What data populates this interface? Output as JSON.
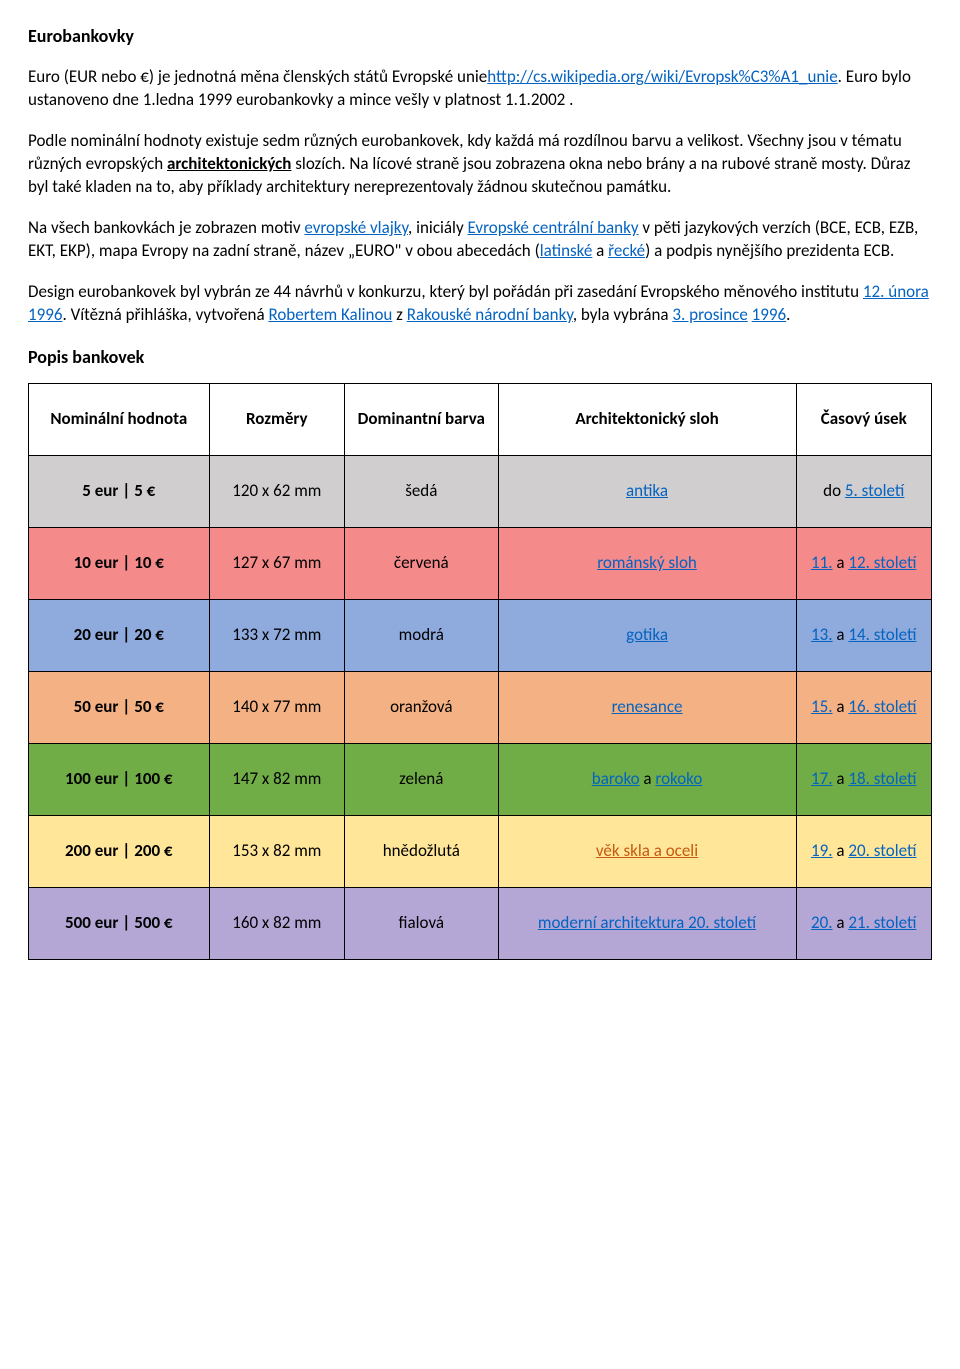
{
  "title": "Eurobankovky",
  "p1a": "Euro (EUR nebo €) je jednotná měna členských států Evropské unie",
  "p1link": "http://cs.wikipedia.org/wiki/Evropsk%C3%A1_unie",
  "p1b": ". Euro bylo ustanoveno dne  1.ledna 1999 eurobankovky a mince vešly v platnost 1.1.2002 .",
  "p2a": "Podle nominální hodnoty existuje sedm  různých eurobankovek, kdy každá má rozdílnou barvu a velikost. Všechny jsou v tématu různých evropských ",
  "p2arch": "architektonických",
  "p2b": " slozích. Na lícové straně jsou zobrazena okna nebo brány a na rubové straně mosty. Důraz byl také kladen na to, aby příklady architektury nereprezentovaly žádnou skutečnou památku.",
  "p3a": "Na všech bankovkách je zobrazen motiv ",
  "p3l1": "evropské vlajky",
  "p3b": ", iniciály ",
  "p3l2": "Evropské centrální banky",
  "p3c": " v pěti jazykových verzích (BCE, ECB, EZB, EKT, EKP), mapa Evropy na zadní straně, název „EURO\" v obou abecedách (",
  "p3l3": "latinské",
  "p3d": " a ",
  "p3l4": "řecké",
  "p3e": ") a podpis nynějšího prezidenta ECB.",
  "p4a": "Design eurobankovek byl vybrán ze 44 návrhů v konkurzu, který byl pořádán při zasedání Evropského měnového institutu ",
  "p4l1": "12. února",
  "p4l2": "1996",
  "p4b": ". Vítězná přihláška, vytvořená ",
  "p4l3": "Robertem Kalinou",
  "p4c": " z ",
  "p4l4": "Rakouské národní banky",
  "p4d": ", byla vybrána ",
  "p4l5": "3. prosince",
  "p4l6": "1996",
  "p4e": ".",
  "subtitle": "Popis bankovek",
  "headers": {
    "h1": "Nominální hodnota",
    "h2": "Rozměry",
    "h3": "Dominantní barva",
    "h4": "Architektonický sloh",
    "h5": "Časový úsek"
  },
  "rows": [
    {
      "bg": "#d0cece",
      "nom": "5 eur | 5 €",
      "dim": "120 x 62 mm",
      "color": "šedá",
      "style": "antika",
      "period_pre": "do ",
      "period_l1": "5. století",
      "period_mid": "",
      "period_l2": "",
      "styleIsLink": true,
      "olink": false
    },
    {
      "bg": "#f58a8a",
      "nom": "10 eur | 10 €",
      "dim": "127 x 67 mm",
      "color": "červená",
      "style": "románský sloh",
      "period_pre": "",
      "period_l1": "11.",
      "period_mid": " a ",
      "period_l2": "12. století",
      "styleIsLink": true,
      "olink": false
    },
    {
      "bg": "#8faadc",
      "nom": "20 eur | 20 €",
      "dim": "133 x 72 mm",
      "color": "modrá",
      "style": "gotika",
      "period_pre": "",
      "period_l1": "13.",
      "period_mid": " a ",
      "period_l2": "14. století",
      "styleIsLink": true,
      "olink": false
    },
    {
      "bg": "#f4b183",
      "nom": "50 eur | 50 €",
      "dim": "140 x 77 mm",
      "color": "oranžová",
      "style": "renesance",
      "period_pre": "",
      "period_l1": "15.",
      "period_mid": " a ",
      "period_l2": "16. století",
      "styleIsLink": true,
      "olink": false
    },
    {
      "bg": "#70ad47",
      "nom": "100 eur | 100 €",
      "dim": "147 x 82 mm",
      "color": "zelená",
      "style": "baroko",
      "style2": "rokoko",
      "period_pre": "",
      "period_l1": "17.",
      "period_mid": " a ",
      "period_l2": "18. století",
      "styleIsLink": true,
      "olink": false,
      "hasStyle2": true
    },
    {
      "bg": "#ffe699",
      "nom": "200 eur | 200 €",
      "dim": "153 x 82 mm",
      "color": "hnědožlutá",
      "style": "věk skla a oceli",
      "period_pre": "",
      "period_l1": "19.",
      "period_mid": " a ",
      "period_l2": "20. století",
      "styleIsLink": true,
      "olink": true
    },
    {
      "bg": "#b4a7d6",
      "nom": "500 eur | 500 €",
      "dim": "160 x 82 mm",
      "color": "fialová",
      "style": "moderní architektura 20. století",
      "period_pre": "",
      "period_l1": "20.",
      "period_mid": " a ",
      "period_l2": "21. století",
      "styleIsLink": true,
      "olink": false
    }
  ]
}
